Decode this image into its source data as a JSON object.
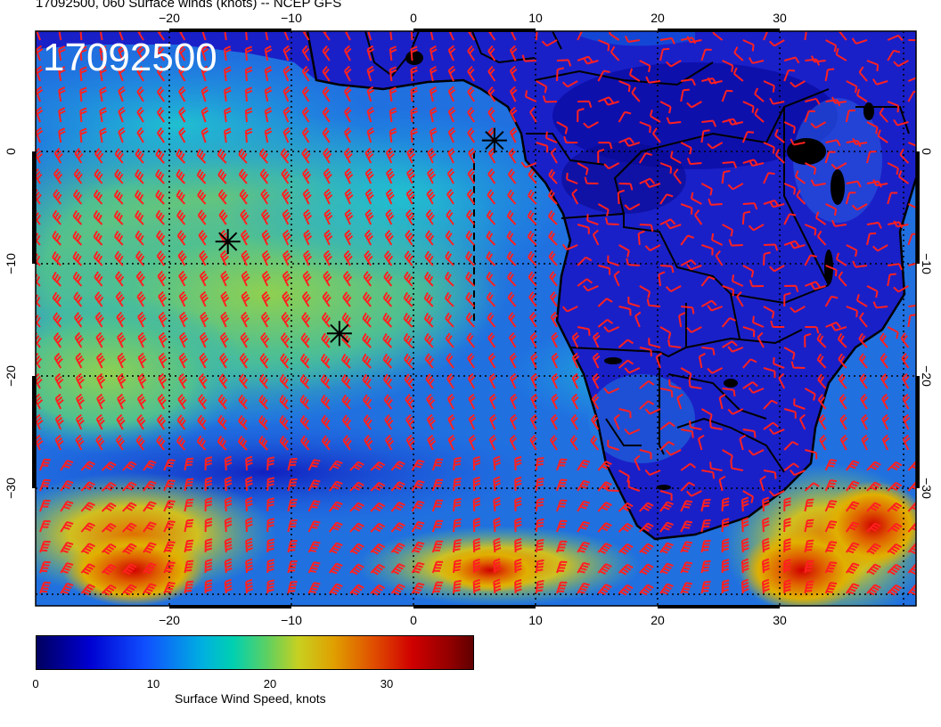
{
  "title": "17092500, 060 Surface winds (knots) -- NCEP GFS",
  "datestamp": "17092500",
  "map": {
    "lon_range": [
      -30,
      41
    ],
    "lat_range": [
      -40,
      10
    ],
    "lon_ticks": [
      "−20",
      "−10",
      "0",
      "10",
      "20",
      "30"
    ],
    "lat_ticks": [
      "0",
      "−10",
      "−20",
      "−30"
    ],
    "storm_markers": [
      {
        "lon": 7,
        "lat": 0.5
      },
      {
        "lon": -14.5,
        "lat": -8.3
      },
      {
        "lon": -5.5,
        "lat": -16.3
      }
    ],
    "colors": {
      "barb": "#ff2020",
      "coast": "#000000",
      "grid": "#000000"
    }
  },
  "colorbar": {
    "label": "Surface Wind Speed, knots",
    "ticks": [
      "0",
      "10",
      "20",
      "30"
    ],
    "range": [
      0,
      36
    ]
  }
}
